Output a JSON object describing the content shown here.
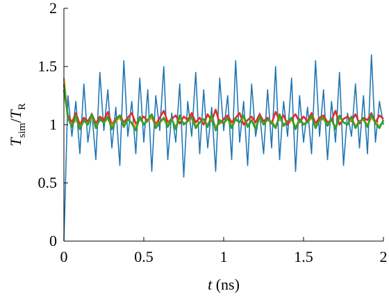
{
  "chart_data": {
    "type": "line",
    "xlabel": [
      "t",
      "(ns)"
    ],
    "ylabel": [
      "T",
      "sim",
      "/",
      "T",
      "R"
    ],
    "x": [
      0,
      0.025,
      0.05,
      0.075,
      0.1,
      0.125,
      0.15,
      0.175,
      0.2,
      0.225,
      0.25,
      0.275,
      0.3,
      0.325,
      0.35,
      0.375,
      0.4,
      0.425,
      0.45,
      0.475,
      0.5,
      0.525,
      0.55,
      0.575,
      0.6,
      0.625,
      0.65,
      0.675,
      0.7,
      0.725,
      0.75,
      0.775,
      0.8,
      0.825,
      0.85,
      0.875,
      0.9,
      0.925,
      0.95,
      0.975,
      1,
      1.025,
      1.05,
      1.075,
      1.1,
      1.125,
      1.15,
      1.175,
      1.2,
      1.225,
      1.25,
      1.275,
      1.3,
      1.325,
      1.35,
      1.375,
      1.4,
      1.425,
      1.45,
      1.475,
      1.5,
      1.525,
      1.55,
      1.575,
      1.6,
      1.625,
      1.65,
      1.675,
      1.7,
      1.725,
      1.75,
      1.775,
      1.8,
      1.825,
      1.85,
      1.875,
      1.9,
      1.925,
      1.95,
      1.975,
      2
    ],
    "series": [
      {
        "color": "#1f77b4",
        "values": [
          0,
          1.25,
          0.9,
          1.2,
          0.75,
          1.35,
          0.85,
          1.1,
          0.7,
          1.45,
          0.95,
          1.3,
          0.8,
          1.15,
          0.65,
          1.55,
          0.9,
          1.2,
          0.75,
          1.4,
          0.85,
          1.3,
          0.6,
          1.25,
          0.95,
          1.5,
          0.7,
          1.1,
          0.85,
          1.35,
          0.55,
          1.2,
          0.9,
          1.45,
          0.75,
          1.3,
          0.8,
          1.15,
          0.6,
          1.4,
          0.95,
          1.25,
          0.7,
          1.55,
          0.85,
          1.2,
          0.65,
          1.35,
          0.9,
          1.1,
          0.75,
          1.3,
          0.8,
          1.5,
          0.7,
          1.2,
          0.9,
          1.4,
          0.6,
          1.25,
          0.85,
          1.15,
          0.75,
          1.55,
          0.9,
          1.3,
          0.7,
          1.2,
          0.85,
          1.45,
          0.65,
          1.1,
          0.9,
          1.35,
          0.8,
          1.25,
          0.75,
          1.6,
          0.85,
          1.2,
          1.0
        ]
      },
      {
        "color": "#e8292a",
        "values": [
          1.3,
          1.08,
          1.02,
          1.1,
          1.0,
          1.06,
          1.03,
          1.09,
          1.01,
          1.07,
          1.04,
          1.11,
          1.0,
          1.05,
          1.08,
          1.02,
          1.06,
          1.1,
          1.01,
          1.04,
          1.07,
          1.03,
          1.09,
          1.0,
          1.06,
          1.12,
          1.02,
          1.05,
          1.08,
          1.01,
          1.07,
          1.04,
          1.1,
          1.02,
          1.06,
          1.0,
          1.09,
          1.03,
          1.13,
          1.01,
          1.05,
          1.08,
          1.02,
          1.06,
          1.1,
          1.0,
          1.04,
          1.07,
          1.02,
          1.09,
          1.03,
          1.06,
          1.01,
          1.11,
          1.04,
          1.08,
          1.0,
          1.05,
          1.09,
          1.02,
          1.07,
          1.03,
          1.1,
          1.01,
          1.06,
          1.08,
          1.02,
          1.04,
          1.12,
          1.0,
          1.05,
          1.07,
          1.03,
          1.09,
          1.01,
          1.06,
          1.04,
          1.1,
          1.02,
          1.08,
          1.05
        ]
      },
      {
        "color": "#f59a1c",
        "values": [
          1.4,
          1.05,
          1.0,
          1.04,
          0.98,
          1.03,
          1.01,
          1.06,
          0.99,
          1.04,
          1.02,
          1.05,
          0.99,
          1.03,
          1.06,
          1.0,
          1.04,
          1.02,
          0.98,
          1.05,
          1.01,
          1.03,
          1.06,
          0.99,
          1.02,
          1.05,
          1.0,
          1.04,
          0.98,
          1.06,
          1.01,
          1.03,
          1.05,
          0.99,
          1.02,
          1.04,
          1.0,
          1.06,
          0.98,
          1.03,
          1.01,
          1.05,
          0.99,
          1.04,
          1.02,
          1.06,
          1.0,
          1.03,
          0.98,
          1.05,
          1.01,
          1.04,
          1.02,
          0.99,
          1.06,
          1.0,
          1.03,
          1.05,
          0.98,
          1.04,
          1.01,
          1.02,
          1.06,
          0.99,
          1.03,
          1.05,
          1.0,
          1.04,
          0.98,
          1.06,
          1.02,
          1.01,
          1.05,
          0.99,
          1.03,
          1.04,
          1.0,
          1.06,
          1.02,
          0.99,
          1.03
        ]
      },
      {
        "color": "#2ca02c",
        "values": [
          1.35,
          1.06,
          0.98,
          1.08,
          0.96,
          1.04,
          1.0,
          1.09,
          0.97,
          1.05,
          1.02,
          1.07,
          0.96,
          1.04,
          1.08,
          0.98,
          1.05,
          1.01,
          0.95,
          1.07,
          1.0,
          1.04,
          1.09,
          0.97,
          1.02,
          1.06,
          0.98,
          1.05,
          0.96,
          1.08,
          1.0,
          1.03,
          1.07,
          0.97,
          1.02,
          1.05,
          0.98,
          1.09,
          0.95,
          1.04,
          1.01,
          1.06,
          0.97,
          1.05,
          1.02,
          1.08,
          0.98,
          1.04,
          0.96,
          1.07,
          1.0,
          1.05,
          1.02,
          0.97,
          1.09,
          0.99,
          1.03,
          1.06,
          0.96,
          1.05,
          1.0,
          1.02,
          1.08,
          0.97,
          1.04,
          1.06,
          0.99,
          1.05,
          0.96,
          1.08,
          1.02,
          1.0,
          1.07,
          0.97,
          1.03,
          1.05,
          0.98,
          1.09,
          1.01,
          0.97,
          1.04
        ]
      }
    ],
    "xlim": [
      0,
      2
    ],
    "ylim": [
      0,
      2
    ],
    "xticks": [
      0,
      0.5,
      1,
      1.5,
      2
    ],
    "yticks": [
      0,
      0.5,
      1,
      1.5,
      2
    ],
    "grid": false
  }
}
